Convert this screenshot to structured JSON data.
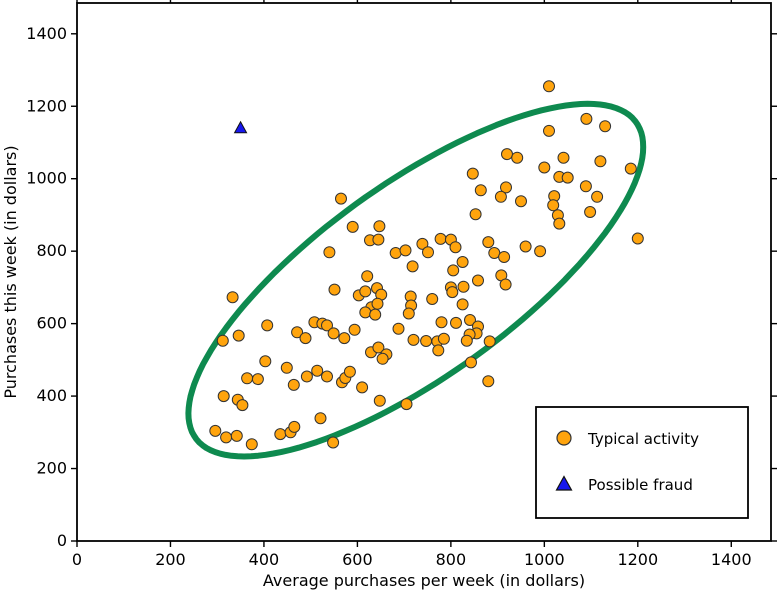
{
  "chart_data": {
    "type": "scatter",
    "xlabel": "Average purchases per week (in dollars)",
    "ylabel": "Purchases this week (in dollars)",
    "xlim": [
      0,
      1485
    ],
    "ylim": [
      0,
      1485
    ],
    "xticks": [
      0,
      200,
      400,
      600,
      800,
      1000,
      1200,
      1400
    ],
    "yticks": [
      0,
      200,
      400,
      600,
      800,
      1000,
      1200,
      1400
    ],
    "grid": false,
    "legend_position": "lower right",
    "series": [
      {
        "name": "Typical activity",
        "marker": "circle",
        "color": "#ffa40d",
        "edge_color": "#333333",
        "points": [
          [
            1010,
            1255
          ],
          [
            1090,
            1165
          ],
          [
            1130,
            1145
          ],
          [
            1010,
            1132
          ],
          [
            920,
            1068
          ],
          [
            942,
            1058
          ],
          [
            1041,
            1058
          ],
          [
            1120,
            1048
          ],
          [
            1000,
            1031
          ],
          [
            1185,
            1028
          ],
          [
            847,
            1014
          ],
          [
            1032,
            1005
          ],
          [
            1050,
            1003
          ],
          [
            918,
            976
          ],
          [
            864,
            968
          ],
          [
            907,
            950
          ],
          [
            1089,
            979
          ],
          [
            950,
            938
          ],
          [
            1021,
            952
          ],
          [
            1019,
            927
          ],
          [
            1029,
            899
          ],
          [
            1032,
            876
          ],
          [
            1098,
            908
          ],
          [
            1113,
            950
          ],
          [
            853,
            902
          ],
          [
            1200,
            835
          ],
          [
            565,
            945
          ],
          [
            590,
            867
          ],
          [
            647,
            869
          ],
          [
            627,
            830
          ],
          [
            645,
            832
          ],
          [
            540,
            797
          ],
          [
            778,
            834
          ],
          [
            800,
            832
          ],
          [
            739,
            820
          ],
          [
            751,
            797
          ],
          [
            682,
            795
          ],
          [
            703,
            802
          ],
          [
            810,
            811
          ],
          [
            880,
            825
          ],
          [
            893,
            795
          ],
          [
            914,
            784
          ],
          [
            960,
            813
          ],
          [
            991,
            800
          ],
          [
            718,
            758
          ],
          [
            805,
            747
          ],
          [
            825,
            770
          ],
          [
            858,
            719
          ],
          [
            908,
            733
          ],
          [
            917,
            708
          ],
          [
            800,
            700
          ],
          [
            827,
            702
          ],
          [
            621,
            731
          ],
          [
            551,
            694
          ],
          [
            603,
            678
          ],
          [
            617,
            689
          ],
          [
            642,
            698
          ],
          [
            651,
            680
          ],
          [
            630,
            645
          ],
          [
            643,
            655
          ],
          [
            617,
            631
          ],
          [
            638,
            625
          ],
          [
            714,
            675
          ],
          [
            715,
            650
          ],
          [
            710,
            628
          ],
          [
            760,
            668
          ],
          [
            333,
            673
          ],
          [
            803,
            687
          ],
          [
            825,
            653
          ],
          [
            780,
            604
          ],
          [
            811,
            602
          ],
          [
            841,
            610
          ],
          [
            858,
            592
          ],
          [
            855,
            573
          ],
          [
            840,
            570
          ],
          [
            688,
            586
          ],
          [
            720,
            555
          ],
          [
            747,
            552
          ],
          [
            771,
            551
          ],
          [
            785,
            558
          ],
          [
            773,
            526
          ],
          [
            834,
            553
          ],
          [
            883,
            551
          ],
          [
            843,
            493
          ],
          [
            880,
            441
          ],
          [
            705,
            378
          ],
          [
            407,
            595
          ],
          [
            471,
            576
          ],
          [
            489,
            560
          ],
          [
            508,
            604
          ],
          [
            525,
            600
          ],
          [
            535,
            595
          ],
          [
            549,
            573
          ],
          [
            572,
            560
          ],
          [
            594,
            583
          ],
          [
            312,
            553
          ],
          [
            346,
            567
          ],
          [
            403,
            496
          ],
          [
            364,
            449
          ],
          [
            387,
            447
          ],
          [
            449,
            478
          ],
          [
            464,
            431
          ],
          [
            492,
            454
          ],
          [
            514,
            470
          ],
          [
            535,
            454
          ],
          [
            567,
            438
          ],
          [
            574,
            450
          ],
          [
            584,
            467
          ],
          [
            610,
            424
          ],
          [
            648,
            387
          ],
          [
            629,
            521
          ],
          [
            645,
            534
          ],
          [
            662,
            515
          ],
          [
            654,
            503
          ],
          [
            314,
            400
          ],
          [
            344,
            390
          ],
          [
            354,
            375
          ],
          [
            521,
            339
          ],
          [
            296,
            304
          ],
          [
            319,
            286
          ],
          [
            342,
            290
          ],
          [
            374,
            267
          ],
          [
            435,
            295
          ],
          [
            457,
            300
          ],
          [
            465,
            315
          ],
          [
            548,
            272
          ]
        ]
      },
      {
        "name": "Possible fraud",
        "marker": "triangle",
        "color": "#1717ee",
        "edge_color": "#111111",
        "points": [
          [
            350,
            1140
          ]
        ]
      }
    ],
    "annotations": [
      {
        "type": "ellipse",
        "center": [
          725,
          720
        ],
        "semi_major": 645,
        "semi_minor": 240,
        "rotation_deg": 45,
        "stroke": "#0e8a4f",
        "stroke_width_px": 6
      }
    ]
  }
}
